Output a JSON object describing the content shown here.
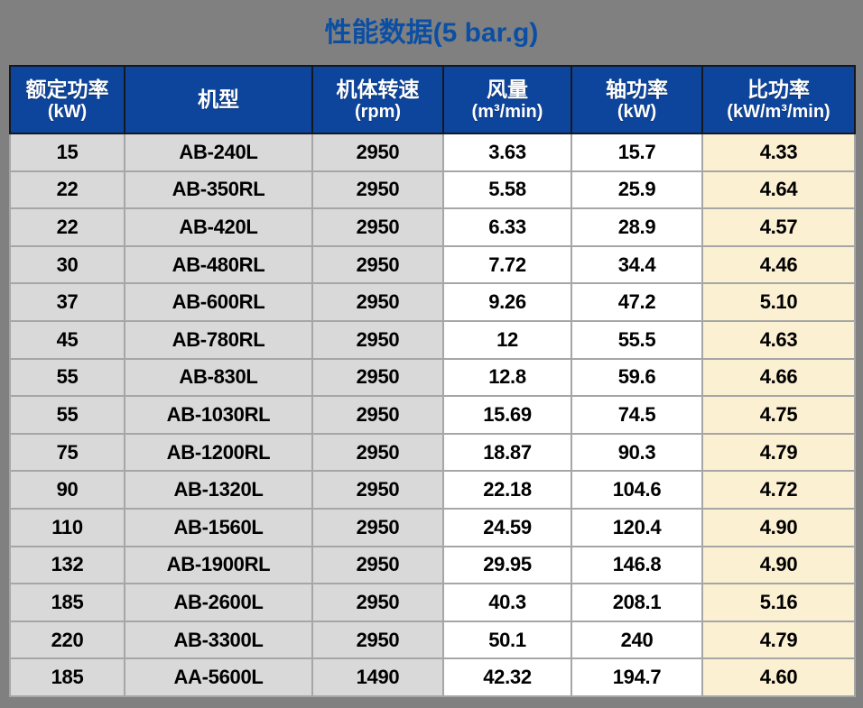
{
  "title": "性能数据(5 bar.g)",
  "colors": {
    "page-bg": "#808080",
    "title-blue": "#0B4FA4",
    "header-bg": "#0E459C",
    "header-text": "#FFFFFF",
    "cell-gray": "#D9D9D9",
    "cell-white": "#FFFFFF",
    "cell-cream": "#FBF0D2",
    "cell-text": "#000000",
    "grid-line": "#A6A6A6"
  },
  "table": {
    "columns": [
      {
        "id": "rated-power",
        "name": "额定功率",
        "unit": "(kW)",
        "bg": "gray"
      },
      {
        "id": "model",
        "name": "机型",
        "unit": "",
        "bg": "gray"
      },
      {
        "id": "rotation-speed",
        "name": "机体转速",
        "unit": "(rpm)",
        "bg": "gray"
      },
      {
        "id": "air-flow",
        "name": "风量",
        "unit": "(m³/min)",
        "bg": "white"
      },
      {
        "id": "shaft-power",
        "name": "轴功率",
        "unit": "(kW)",
        "bg": "white"
      },
      {
        "id": "specific-power",
        "name": "比功率",
        "unit": "(kW/m³/min)",
        "bg": "cream"
      }
    ],
    "rows": [
      [
        "15",
        "AB-240L",
        "2950",
        "3.63",
        "15.7",
        "4.33"
      ],
      [
        "22",
        "AB-350RL",
        "2950",
        "5.58",
        "25.9",
        "4.64"
      ],
      [
        "22",
        "AB-420L",
        "2950",
        "6.33",
        "28.9",
        "4.57"
      ],
      [
        "30",
        "AB-480RL",
        "2950",
        "7.72",
        "34.4",
        "4.46"
      ],
      [
        "37",
        "AB-600RL",
        "2950",
        "9.26",
        "47.2",
        "5.10"
      ],
      [
        "45",
        "AB-780RL",
        "2950",
        "12",
        "55.5",
        "4.63"
      ],
      [
        "55",
        "AB-830L",
        "2950",
        "12.8",
        "59.6",
        "4.66"
      ],
      [
        "55",
        "AB-1030RL",
        "2950",
        "15.69",
        "74.5",
        "4.75"
      ],
      [
        "75",
        "AB-1200RL",
        "2950",
        "18.87",
        "90.3",
        "4.79"
      ],
      [
        "90",
        "AB-1320L",
        "2950",
        "22.18",
        "104.6",
        "4.72"
      ],
      [
        "110",
        "AB-1560L",
        "2950",
        "24.59",
        "120.4",
        "4.90"
      ],
      [
        "132",
        "AB-1900RL",
        "2950",
        "29.95",
        "146.8",
        "4.90"
      ],
      [
        "185",
        "AB-2600L",
        "2950",
        "40.3",
        "208.1",
        "5.16"
      ],
      [
        "220",
        "AB-3300L",
        "2950",
        "50.1",
        "240",
        "4.79"
      ],
      [
        "185",
        "AA-5600L",
        "1490",
        "42.32",
        "194.7",
        "4.60"
      ]
    ]
  },
  "chart_data": {
    "type": "table",
    "title": "性能数据(5 bar.g)",
    "columns": [
      "额定功率 (kW)",
      "机型",
      "机体转速 (rpm)",
      "风量 (m³/min)",
      "轴功率 (kW)",
      "比功率 (kW/m³/min)"
    ],
    "rows": [
      [
        15,
        "AB-240L",
        2950,
        3.63,
        15.7,
        4.33
      ],
      [
        22,
        "AB-350RL",
        2950,
        5.58,
        25.9,
        4.64
      ],
      [
        22,
        "AB-420L",
        2950,
        6.33,
        28.9,
        4.57
      ],
      [
        30,
        "AB-480RL",
        2950,
        7.72,
        34.4,
        4.46
      ],
      [
        37,
        "AB-600RL",
        2950,
        9.26,
        47.2,
        5.1
      ],
      [
        45,
        "AB-780RL",
        2950,
        12,
        55.5,
        4.63
      ],
      [
        55,
        "AB-830L",
        2950,
        12.8,
        59.6,
        4.66
      ],
      [
        55,
        "AB-1030RL",
        2950,
        15.69,
        74.5,
        4.75
      ],
      [
        75,
        "AB-1200RL",
        2950,
        18.87,
        90.3,
        4.79
      ],
      [
        90,
        "AB-1320L",
        2950,
        22.18,
        104.6,
        4.72
      ],
      [
        110,
        "AB-1560L",
        2950,
        24.59,
        120.4,
        4.9
      ],
      [
        132,
        "AB-1900RL",
        2950,
        29.95,
        146.8,
        4.9
      ],
      [
        185,
        "AB-2600L",
        2950,
        40.3,
        208.1,
        5.16
      ],
      [
        220,
        "AB-3300L",
        2950,
        50.1,
        240,
        4.79
      ],
      [
        185,
        "AA-5600L",
        1490,
        42.32,
        194.7,
        4.6
      ]
    ]
  }
}
